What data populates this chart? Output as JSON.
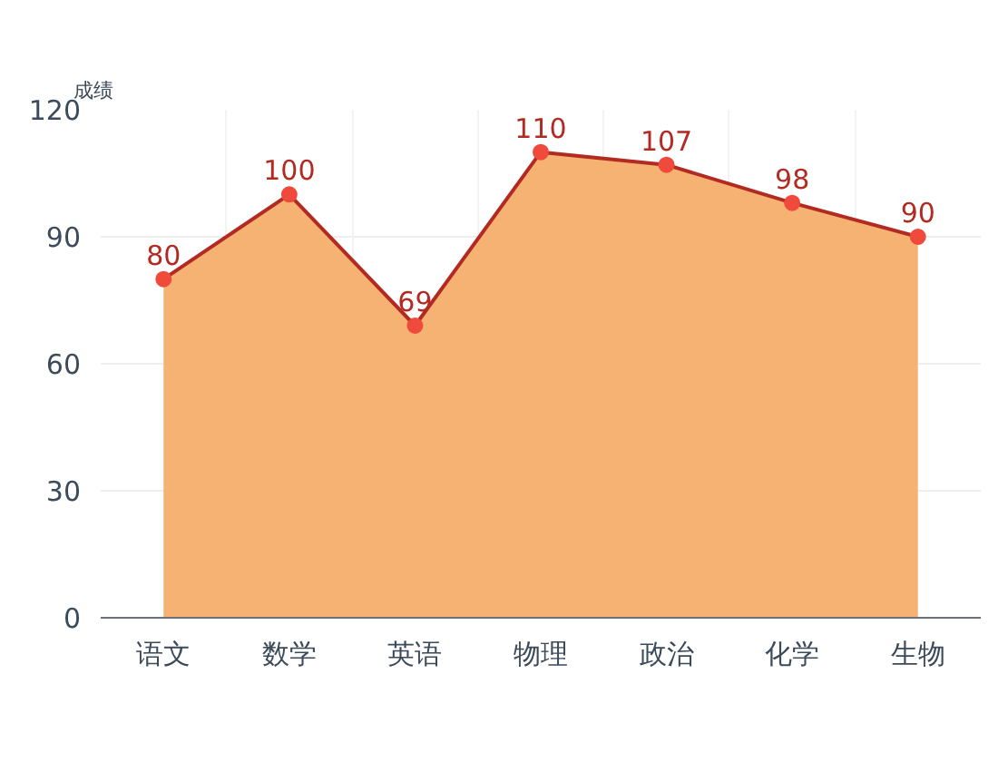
{
  "chart_data": {
    "type": "area",
    "ylabel": "成绩",
    "categories": [
      "语文",
      "数学",
      "英语",
      "物理",
      "政治",
      "化学",
      "生物"
    ],
    "series": [
      {
        "color": "#f5ae6a",
        "values": [
          80,
          100,
          69,
          110,
          107,
          98,
          90
        ]
      }
    ],
    "ylim": [
      0,
      120
    ],
    "yticks": [
      0,
      30,
      60,
      90,
      120
    ],
    "grid": true,
    "marker": "circle",
    "data_labels": true
  }
}
